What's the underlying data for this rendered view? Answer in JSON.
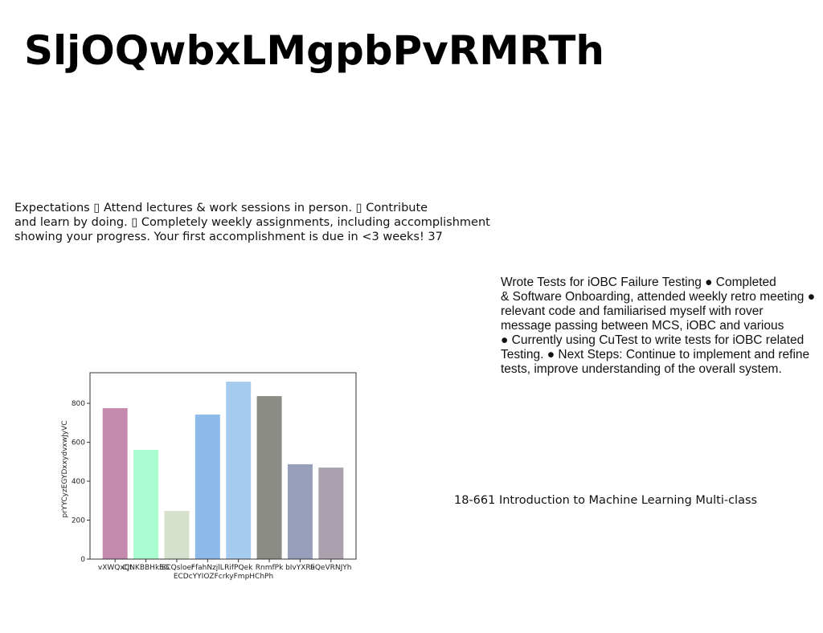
{
  "title": "SljOQwbxLMgpbPvRMRTh",
  "paragraph1": [
    "Expectations ▯ Attend lectures & work sessions in person. ▯ Contribute",
    "and learn by doing. ▯ Completely weekly assignments, including accomplishment",
    "showing your progress. Your first accomplishment is due in <3 weeks! 37"
  ],
  "paragraph2": [
    "Wrote Tests for iOBC Failure Testing ● Completed",
    "& Software Onboarding, attended weekly retro meeting ●",
    "relevant code and familiarised myself with rover",
    "message passing between MCS, iOBC and various",
    "● Currently using CuTest to write tests for iOBC related",
    "Testing. ● Next Steps: Continue to implement and refine",
    "tests, improve understanding of the overall system."
  ],
  "caption": "18-661 Introduction to Machine Learning Multi-class",
  "chart_data": {
    "type": "bar",
    "y_label": "prYYCyzEGYDxxydvxwJyVC",
    "categories": [
      "vXWQxCt",
      "CJNKBBHkSG",
      "iSCQsloer",
      "FfahNzjlL",
      "RifPQek",
      "RnmfPk",
      "bIvYXRe",
      "fiQeVRNJYh"
    ],
    "x_label_line2": "ECDcYYIOZFcrkyFmpHChPh",
    "values": [
      775,
      561,
      247,
      742,
      911,
      837,
      487,
      470
    ],
    "colors": [
      "#c48aad",
      "#a8fcd0",
      "#d6e1cb",
      "#8db9ea",
      "#a5ccee",
      "#8a8c85",
      "#979fbb",
      "#a9a2ae"
    ],
    "ylim": [
      0,
      957
    ],
    "yticks": [
      0,
      200,
      400,
      600,
      800
    ]
  }
}
